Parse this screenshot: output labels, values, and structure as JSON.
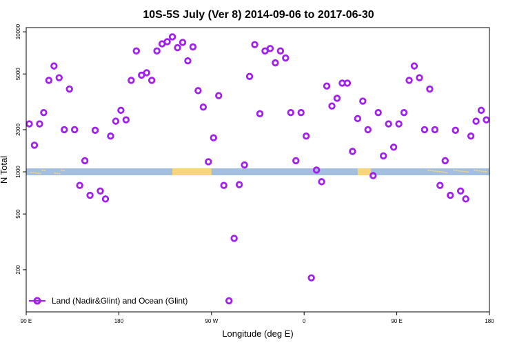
{
  "chart_data": {
    "type": "scatter",
    "title": "10S-5S July (Ver 8)   2014-09-06 to 2017-06-30",
    "xlabel": "Longitude (deg E)",
    "ylabel": "N Total",
    "xlim": [
      90,
      540
    ],
    "ylim_log10": [
      2.0,
      4.03
    ],
    "x_ticks": [
      {
        "value": 90,
        "label": "90 E"
      },
      {
        "value": 180,
        "label": "180"
      },
      {
        "value": 270,
        "label": "90 W"
      },
      {
        "value": 360,
        "label": "0"
      },
      {
        "value": 450,
        "label": "90 E"
      },
      {
        "value": 540,
        "label": "180"
      }
    ],
    "y_ticks": [
      200,
      500,
      1000,
      2000,
      5000,
      10000
    ],
    "y_tick_labels": [
      "200",
      "500",
      "1000",
      "2000",
      "5000",
      "10000"
    ],
    "grid": false,
    "legend": {
      "position": "bottom-left",
      "entries": [
        "Land (Nadir&Glint) and Ocean (Glint)"
      ]
    },
    "colors": {
      "series": "#a020f0",
      "ocean": "#a4bedf",
      "land": "#f7d57a"
    },
    "series": [
      {
        "name": "Land (Nadir&Glint) and Ocean (Glint)",
        "x": [
          93,
          98,
          103,
          107,
          112,
          117,
          122,
          127,
          132,
          137,
          142,
          147,
          152,
          157,
          162,
          167,
          172,
          177,
          182,
          187,
          192,
          197,
          202,
          207,
          212,
          217,
          222,
          227,
          232,
          237,
          242,
          247,
          252,
          257,
          262,
          267,
          272,
          277,
          282,
          287,
          292,
          297,
          302,
          307,
          312,
          317,
          322,
          327,
          332,
          337,
          342,
          347,
          352,
          357,
          362,
          367,
          372,
          377,
          382,
          387,
          392,
          397,
          402,
          407,
          412,
          417,
          422,
          427,
          432,
          437,
          442,
          447,
          452,
          457,
          462,
          467,
          472,
          477,
          482,
          487,
          492,
          497,
          502,
          507,
          512,
          517,
          522,
          527,
          532,
          537
        ],
        "y": [
          2200,
          1550,
          2200,
          2650,
          4500,
          5700,
          4700,
          2000,
          3900,
          2000,
          800,
          1200,
          680,
          1980,
          730,
          640,
          1800,
          2300,
          2750,
          2350,
          4500,
          7300,
          4900,
          5100,
          4500,
          7300,
          8200,
          8500,
          9200,
          7700,
          8400,
          6200,
          7800,
          3800,
          2900,
          1180,
          1750,
          3500,
          800,
          120,
          335,
          810,
          1120,
          4800,
          8100,
          2600,
          7300,
          7600,
          6000,
          7300,
          6500,
          2650,
          1200,
          2650,
          1800,
          175,
          1030,
          850,
          4100,
          2950,
          3350,
          4300,
          4300,
          1400,
          2400,
          3200,
          2000,
          940,
          2650,
          1300,
          2200,
          1500,
          2200,
          2650,
          4500,
          5700,
          4700,
          2000,
          3900,
          2000,
          800,
          1200,
          680,
          1980,
          730,
          640,
          1800,
          2300,
          2750,
          2350
        ]
      }
    ]
  }
}
